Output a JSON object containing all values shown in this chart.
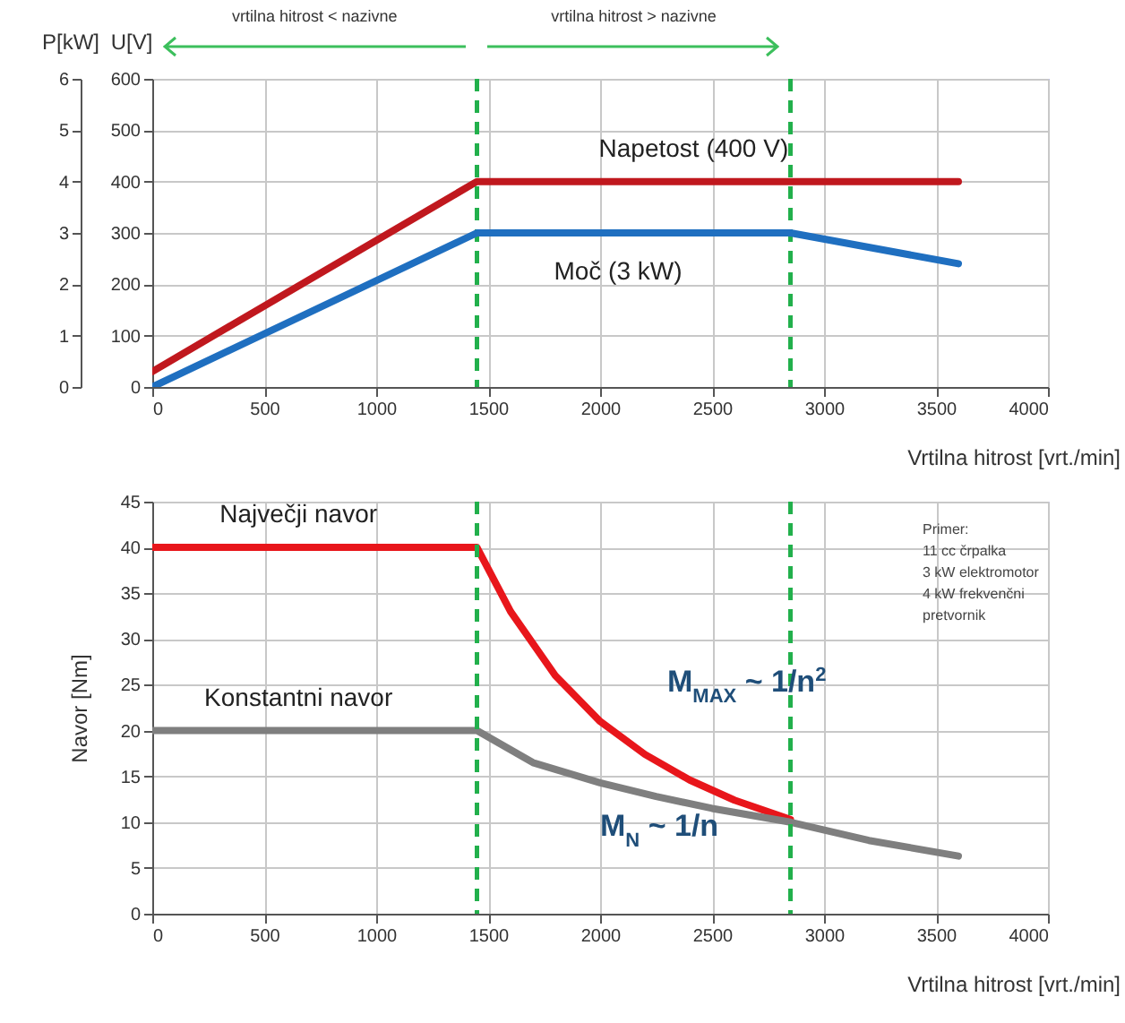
{
  "chart_data": [
    {
      "type": "line",
      "xlabel": "Vrtilna hitrost [vrt./min]",
      "ylabel": "P[kW]",
      "y2label": "U[V]",
      "xlim": [
        0,
        4000
      ],
      "xticks": [
        0,
        500,
        1000,
        1500,
        2000,
        2500,
        3000,
        3500,
        4000
      ],
      "ylim": [
        0,
        6
      ],
      "yticks": [
        0,
        1,
        2,
        3,
        4,
        5,
        6
      ],
      "y2lim": [
        0,
        600
      ],
      "y2ticks": [
        0,
        100,
        200,
        300,
        400,
        500,
        600
      ],
      "grid": true,
      "marker": "none",
      "line_style": "solid",
      "series": [
        {
          "name": "Napetost (400 V)",
          "color": "#c0181e",
          "axis": "y2",
          "x": [
            0,
            1450,
            3600
          ],
          "values": [
            30,
            400,
            400
          ]
        },
        {
          "name": "Moč (3 kW)",
          "color": "#1f6fc0",
          "x": [
            0,
            1450,
            2850,
            3600
          ],
          "values": [
            0,
            3,
            3,
            2.4
          ]
        }
      ],
      "ref_lines": [
        {
          "axis": "x",
          "value": 1450,
          "color": "#22b04c",
          "line_style": "dashed"
        },
        {
          "axis": "x",
          "value": 2850,
          "color": "#22b04c",
          "line_style": "dashed"
        }
      ],
      "annotations": [
        "vrtilna hitrost < nazivne",
        "vrtilna hitrost > nazivne"
      ]
    },
    {
      "type": "line",
      "xlabel": "Vrtilna hitrost [vrt./min]",
      "ylabel": "Navor [Nm]",
      "xlim": [
        0,
        4000
      ],
      "xticks": [
        0,
        500,
        1000,
        1500,
        2000,
        2500,
        3000,
        3500,
        4000
      ],
      "ylim": [
        0,
        45
      ],
      "yticks": [
        0,
        5,
        10,
        15,
        20,
        25,
        30,
        35,
        40,
        45
      ],
      "grid": true,
      "marker": "none",
      "line_style": "solid",
      "series": [
        {
          "name": "Največji navor",
          "color": "#e8161b",
          "x": [
            0,
            1450,
            1600,
            1800,
            2000,
            2200,
            2400,
            2600,
            2850
          ],
          "values": [
            40,
            40,
            33,
            26,
            21,
            17.4,
            14.6,
            12.4,
            10.3
          ]
        },
        {
          "name": "Konstantni navor",
          "color": "#7f7f7f",
          "x": [
            0,
            1450,
            1700,
            2000,
            2250,
            2500,
            2850,
            3200,
            3600
          ],
          "values": [
            20,
            20,
            16.5,
            14.3,
            12.8,
            11.5,
            10,
            8,
            6.3
          ]
        }
      ],
      "ref_lines": [
        {
          "axis": "x",
          "value": 1450,
          "color": "#22b04c",
          "line_style": "dashed"
        },
        {
          "axis": "x",
          "value": 2850,
          "color": "#22b04c",
          "line_style": "dashed"
        }
      ],
      "annotations": [
        "M$_{MAX}$ ~ 1/n$^{2}$",
        "M$_{N}$ ~ 1/n",
        "Primer:\n11 cc črpalka\n3 kW elektromotor\n4 kW frekvenčni\npretvornik"
      ]
    }
  ]
}
